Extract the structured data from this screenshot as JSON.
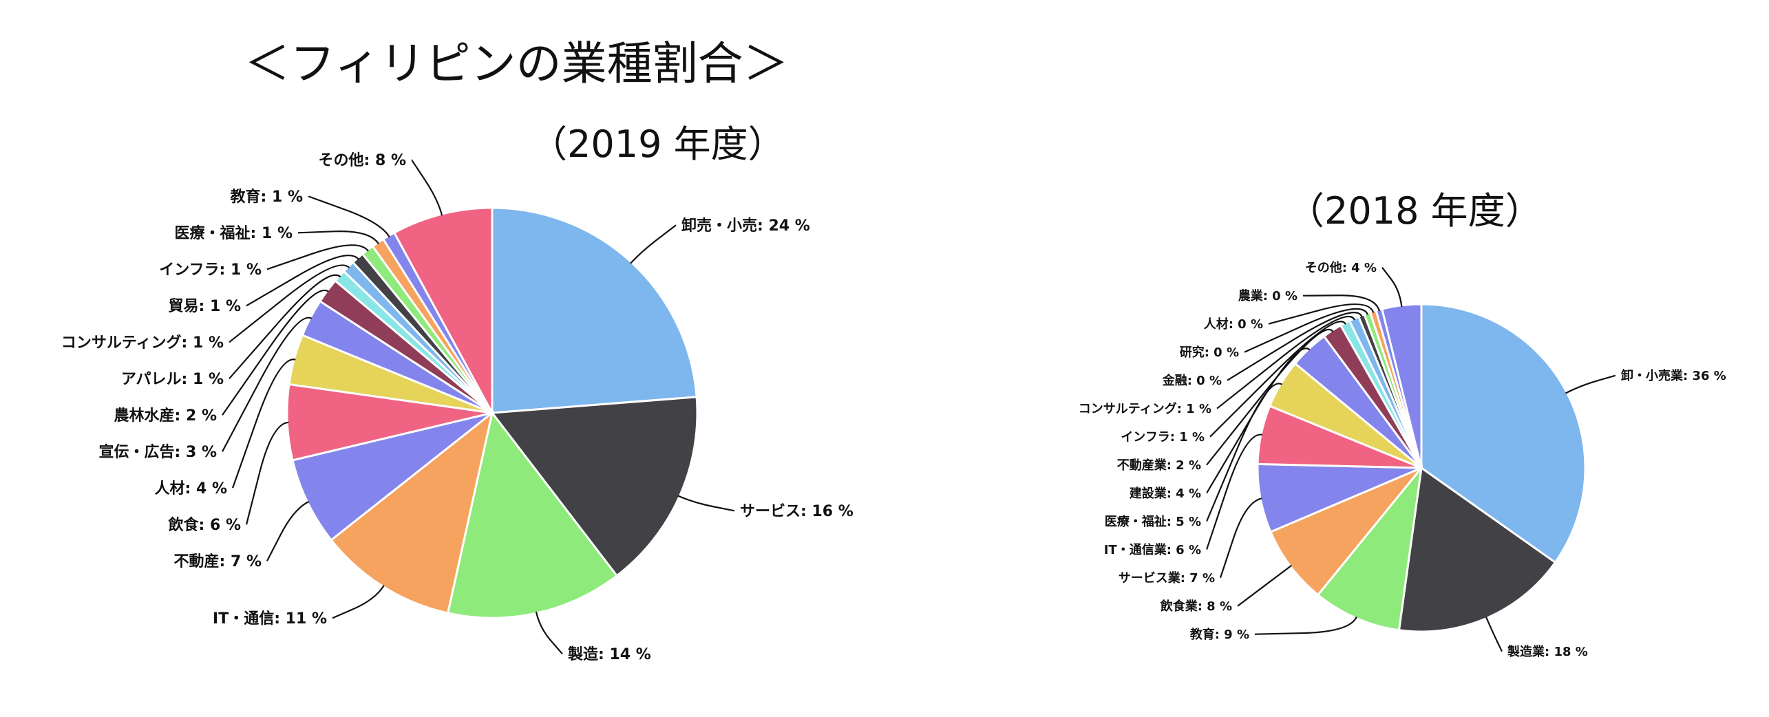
{
  "main_title": "＜フィリピンの業種割合＞",
  "chart_data": [
    {
      "type": "pie",
      "title": "（2019 年度）",
      "slices": [
        {
          "label": "卸売・小売",
          "value": 24,
          "display": "卸売・小売: 24 %",
          "color": "#7eb6ee"
        },
        {
          "label": "サービス",
          "value": 16,
          "display": "サービス: 16 %",
          "color": "#424246"
        },
        {
          "label": "製造",
          "value": 14,
          "display": "製造: 14 %",
          "color": "#8eea7b"
        },
        {
          "label": "IT・通信",
          "value": 11,
          "display": "IT・通信: 11 %",
          "color": "#f5a35e"
        },
        {
          "label": "不動産",
          "value": 7,
          "display": "不動産: 7 %",
          "color": "#8385ec"
        },
        {
          "label": "飲食",
          "value": 6,
          "display": "飲食: 6 %",
          "color": "#f06383"
        },
        {
          "label": "人材",
          "value": 4,
          "display": "人材: 4 %",
          "color": "#e6d35a"
        },
        {
          "label": "宣伝・広告",
          "value": 3,
          "display": "宣伝・広告: 3 %",
          "color": "#8385ec"
        },
        {
          "label": "農林水産",
          "value": 2,
          "display": "農林水産: 2 %",
          "color": "#8f3d58"
        },
        {
          "label": "アパレル",
          "value": 1,
          "display": "アパレル: 1 %",
          "color": "#8ae6e6"
        },
        {
          "label": "コンサルティング",
          "value": 1,
          "display": "コンサルティング: 1 %",
          "color": "#7eb6ee"
        },
        {
          "label": "貿易",
          "value": 1,
          "display": "貿易: 1 %",
          "color": "#424246"
        },
        {
          "label": "インフラ",
          "value": 1,
          "display": "インフラ: 1 %",
          "color": "#8eea7b"
        },
        {
          "label": "医療・福祉",
          "value": 1,
          "display": "医療・福祉: 1 %",
          "color": "#f5a35e"
        },
        {
          "label": "教育",
          "value": 1,
          "display": "教育: 1 %",
          "color": "#8385ec"
        },
        {
          "label": "その他",
          "value": 8,
          "display": "その他: 8 %",
          "color": "#f06383"
        }
      ]
    },
    {
      "type": "pie",
      "title": "（2018 年度）",
      "slices": [
        {
          "label": "卸・小売業",
          "value": 36,
          "display": "卸・小売業: 36 %",
          "color": "#7eb6ee"
        },
        {
          "label": "製造業",
          "value": 18,
          "display": "製造業: 18 %",
          "color": "#424246"
        },
        {
          "label": "教育",
          "value": 9,
          "display": "教育: 9 %",
          "color": "#8eea7b"
        },
        {
          "label": "飲食業",
          "value": 8,
          "display": "飲食業: 8 %",
          "color": "#f5a35e"
        },
        {
          "label": "サービス業",
          "value": 7,
          "display": "サービス業: 7 %",
          "color": "#8385ec"
        },
        {
          "label": "IT・通信業",
          "value": 6,
          "display": "IT・通信業: 6 %",
          "color": "#f06383"
        },
        {
          "label": "医療・福祉",
          "value": 5,
          "display": "医療・福祉: 5 %",
          "color": "#e6d35a"
        },
        {
          "label": "建設業",
          "value": 4,
          "display": "建設業: 4 %",
          "color": "#8385ec"
        },
        {
          "label": "不動産業",
          "value": 2,
          "display": "不動産業: 2 %",
          "color": "#8f3d58"
        },
        {
          "label": "インフラ",
          "value": 1,
          "display": "インフラ: 1 %",
          "color": "#8ae6e6"
        },
        {
          "label": "コンサルティング",
          "value": 1,
          "display": "コンサルティング: 1 %",
          "color": "#7eb6ee"
        },
        {
          "label": "金融",
          "value": 0,
          "display": "金融: 0 %",
          "color": "#424246"
        },
        {
          "label": "研究",
          "value": 0,
          "display": "研究: 0 %",
          "color": "#8eea7b"
        },
        {
          "label": "人材",
          "value": 0,
          "display": "人材: 0 %",
          "color": "#f5a35e"
        },
        {
          "label": "農業",
          "value": 0,
          "display": "農業: 0 %",
          "color": "#8385ec"
        },
        {
          "label": "その他",
          "value": 4,
          "display": "その他: 4 %",
          "color": "#8385ec"
        }
      ]
    }
  ]
}
